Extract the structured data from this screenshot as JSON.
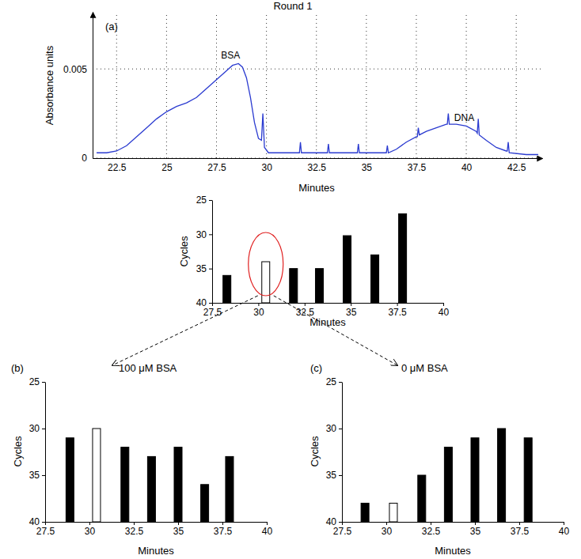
{
  "chart_data": [
    {
      "type": "line",
      "title": "Round 1",
      "panel": "(a)",
      "x_label": "Minutes",
      "y_label": "Absorbance units",
      "x": [
        21.5,
        22.0,
        22.5,
        23.0,
        23.5,
        24.0,
        24.5,
        25.0,
        25.5,
        26.0,
        26.5,
        27.0,
        27.5,
        28.0,
        28.3,
        28.6,
        28.8,
        29.0,
        29.2,
        29.4,
        29.6,
        29.75,
        29.82,
        29.9,
        30.1,
        31.0,
        31.65,
        31.7,
        31.75,
        33.05,
        33.1,
        33.15,
        34.55,
        34.6,
        34.65,
        36.0,
        36.05,
        36.1,
        36.5,
        37.0,
        37.5,
        37.55,
        37.6,
        37.65,
        38.0,
        38.5,
        39.0,
        39.05,
        39.1,
        39.15,
        39.5,
        40.0,
        40.5,
        40.55,
        40.6,
        40.65,
        41.0,
        41.5,
        42.0,
        42.05,
        42.1,
        42.15,
        43.0,
        43.6
      ],
      "values": [
        0.0003,
        0.0003,
        0.0004,
        0.0007,
        0.0012,
        0.0017,
        0.0022,
        0.0026,
        0.0029,
        0.0031,
        0.0034,
        0.0039,
        0.0044,
        0.0049,
        0.0052,
        0.0053,
        0.0051,
        0.0045,
        0.0034,
        0.002,
        0.0011,
        0.001,
        0.0025,
        0.0006,
        0.0003,
        0.0003,
        0.0003,
        0.0009,
        0.0003,
        0.0003,
        0.0008,
        0.0003,
        0.0003,
        0.0008,
        0.0003,
        0.0003,
        0.0007,
        0.0003,
        0.0005,
        0.0009,
        0.0012,
        0.0012,
        0.0017,
        0.0013,
        0.0015,
        0.0017,
        0.0019,
        0.0019,
        0.0025,
        0.0019,
        0.0019,
        0.0018,
        0.0015,
        0.0014,
        0.0022,
        0.0013,
        0.001,
        0.0006,
        0.0004,
        0.0004,
        0.0009,
        0.0003,
        0.0002,
        0.0002
      ],
      "color": "#2b3bd0",
      "xlim": [
        21.3,
        43.8
      ],
      "ylim": [
        0,
        0.0082
      ],
      "xticks": [
        22.5,
        25,
        27.5,
        30,
        32.5,
        35,
        37.5,
        40,
        42.5
      ],
      "yticks": [
        0,
        0.005
      ],
      "grid": true,
      "annotations": [
        {
          "text": "BSA",
          "x": 28.2,
          "y": 0.0056
        },
        {
          "text": "DNA",
          "x": 39.9,
          "y": 0.0021
        }
      ]
    },
    {
      "type": "bar",
      "x_label": "Minutes",
      "y_label": "Cycles",
      "x": [
        28.3,
        30.4,
        31.9,
        33.3,
        34.8,
        36.3,
        37.8
      ],
      "values": [
        36,
        34,
        35,
        35,
        30.2,
        33,
        27
      ],
      "colors": [
        "#000000",
        "#ffffff",
        "#000000",
        "#000000",
        "#000000",
        "#000000",
        "#000000"
      ],
      "xlim": [
        27.5,
        40
      ],
      "ylim": [
        40,
        25
      ],
      "xticks": [
        27.5,
        30,
        32.5,
        35,
        37.5,
        40
      ],
      "yticks": [
        25,
        30,
        35,
        40
      ],
      "grid": false
    },
    {
      "type": "bar",
      "title": "100 μM BSA",
      "panel": "(b)",
      "x_label": "Minutes",
      "y_label": "Cycles",
      "x": [
        28.9,
        30.4,
        32.0,
        33.5,
        35.0,
        36.5,
        37.9
      ],
      "values": [
        31,
        30,
        32,
        33,
        32,
        36,
        33
      ],
      "colors": [
        "#000000",
        "#ffffff",
        "#000000",
        "#000000",
        "#000000",
        "#000000",
        "#000000"
      ],
      "xlim": [
        27.5,
        40
      ],
      "ylim": [
        40,
        25
      ],
      "xticks": [
        27.5,
        30,
        32.5,
        35,
        37.5,
        40
      ],
      "yticks": [
        25,
        30,
        35,
        40
      ],
      "grid": false
    },
    {
      "type": "bar",
      "title": "0 μM BSA",
      "panel": "(c)",
      "x_label": "Minutes",
      "y_label": "Cycles",
      "x": [
        28.8,
        30.4,
        32.0,
        33.5,
        35.0,
        36.5,
        38.0
      ],
      "values": [
        38,
        38,
        35,
        32,
        31,
        30,
        31
      ],
      "colors": [
        "#000000",
        "#ffffff",
        "#000000",
        "#000000",
        "#000000",
        "#000000",
        "#000000"
      ],
      "xlim": [
        27.5,
        40
      ],
      "ylim": [
        40,
        25
      ],
      "xticks": [
        27.5,
        30,
        32.5,
        35,
        37.5,
        40
      ],
      "yticks": [
        25,
        30,
        35,
        40
      ],
      "grid": false
    }
  ]
}
